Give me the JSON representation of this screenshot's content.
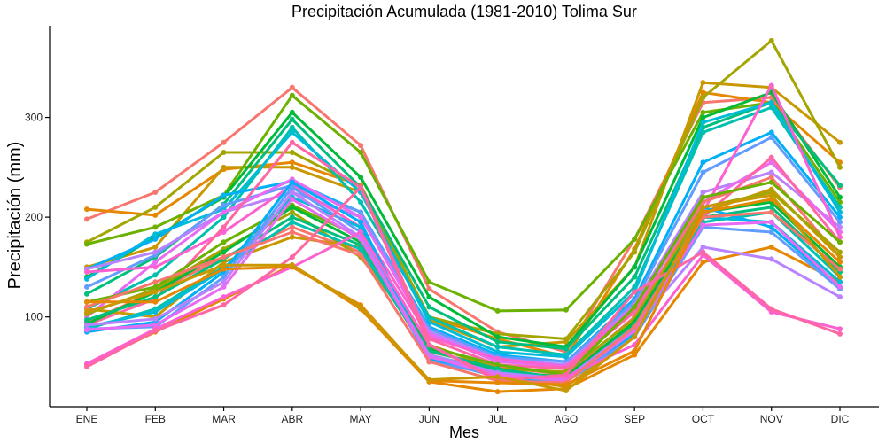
{
  "chart_data": {
    "type": "line",
    "title": "Precipitación Acumulada (1981-2010)  Tolima Sur",
    "xlabel": "Mes",
    "ylabel": "Precipitación  (mm)",
    "categories": [
      "ENE",
      "FEB",
      "MAR",
      "ABR",
      "MAY",
      "JUN",
      "JUL",
      "AGO",
      "SEP",
      "OCT",
      "NOV",
      "DIC"
    ],
    "yticks": [
      100,
      200,
      300
    ],
    "ylim": [
      10,
      392
    ],
    "grid": false,
    "legend": "none",
    "series": [
      {
        "color": "#F8766D",
        "values": [
          198,
          225,
          275,
          330,
          272,
          128,
          85,
          65,
          178,
          315,
          320,
          230
        ]
      },
      {
        "color": "#E58700",
        "values": [
          208,
          202,
          248,
          255,
          232,
          100,
          78,
          60,
          168,
          325,
          315,
          255
        ]
      },
      {
        "color": "#C99800",
        "values": [
          150,
          170,
          250,
          250,
          225,
          97,
          70,
          75,
          150,
          335,
          330,
          275
        ]
      },
      {
        "color": "#A3A500",
        "values": [
          175,
          210,
          265,
          265,
          230,
          100,
          83,
          78,
          165,
          320,
          377,
          250
        ]
      },
      {
        "color": "#6BB100",
        "values": [
          173,
          190,
          222,
          322,
          265,
          135,
          106,
          107,
          178,
          305,
          315,
          215
        ]
      },
      {
        "color": "#00BA38",
        "values": [
          140,
          180,
          220,
          305,
          240,
          120,
          80,
          70,
          150,
          300,
          325,
          220
        ]
      },
      {
        "color": "#00BF7D",
        "values": [
          123,
          160,
          213,
          298,
          230,
          110,
          75,
          68,
          140,
          290,
          315,
          232
        ]
      },
      {
        "color": "#00C0AF",
        "values": [
          108,
          142,
          200,
          290,
          215,
          100,
          70,
          62,
          130,
          285,
          310,
          210
        ]
      },
      {
        "color": "#00BCD8",
        "values": [
          138,
          183,
          208,
          285,
          225,
          95,
          65,
          60,
          125,
          295,
          315,
          205
        ]
      },
      {
        "color": "#00B0F6",
        "values": [
          148,
          178,
          222,
          236,
          205,
          90,
          62,
          55,
          118,
          255,
          285,
          200
        ]
      },
      {
        "color": "#619CFF",
        "values": [
          130,
          162,
          212,
          232,
          205,
          88,
          60,
          55,
          115,
          245,
          280,
          195
        ]
      },
      {
        "color": "#B983FF",
        "values": [
          148,
          165,
          205,
          225,
          200,
          85,
          58,
          52,
          112,
          225,
          245,
          190
        ]
      },
      {
        "color": "#E76BF3",
        "values": [
          100,
          155,
          205,
          238,
          200,
          83,
          55,
          50,
          110,
          215,
          255,
          185
        ]
      },
      {
        "color": "#FD61D1",
        "values": [
          145,
          150,
          185,
          232,
          190,
          80,
          58,
          50,
          108,
          205,
          332,
          180
        ]
      },
      {
        "color": "#FF67A4",
        "values": [
          92,
          118,
          190,
          275,
          230,
          78,
          52,
          48,
          105,
          200,
          260,
          175
        ]
      },
      {
        "color": "#F8766D",
        "values": [
          95,
          125,
          160,
          190,
          165,
          65,
          50,
          42,
          100,
          215,
          240,
          160
        ]
      },
      {
        "color": "#E58700",
        "values": [
          52,
          85,
          118,
          152,
          108,
          35,
          25,
          28,
          62,
          155,
          170,
          135
        ]
      },
      {
        "color": "#C99800",
        "values": [
          108,
          100,
          155,
          180,
          170,
          60,
          40,
          30,
          82,
          205,
          228,
          160
        ]
      },
      {
        "color": "#A3A500",
        "values": [
          103,
          128,
          168,
          205,
          160,
          72,
          48,
          45,
          98,
          210,
          225,
          165
        ]
      },
      {
        "color": "#6BB100",
        "values": [
          115,
          130,
          175,
          212,
          180,
          70,
          52,
          42,
          110,
          220,
          235,
          175
        ]
      },
      {
        "color": "#00BA38",
        "values": [
          93,
          125,
          165,
          210,
          175,
          68,
          45,
          40,
          95,
          205,
          215,
          150
        ]
      },
      {
        "color": "#00BF7D",
        "values": [
          97,
          120,
          158,
          200,
          172,
          66,
          48,
          38,
          92,
          200,
          210,
          145
        ]
      },
      {
        "color": "#00C0AF",
        "values": [
          88,
          108,
          150,
          195,
          168,
          62,
          45,
          38,
          88,
          195,
          205,
          140
        ]
      },
      {
        "color": "#00BCD8",
        "values": [
          90,
          105,
          148,
          220,
          190,
          60,
          42,
          36,
          85,
          200,
          195,
          135
        ]
      },
      {
        "color": "#00B0F6",
        "values": [
          85,
          95,
          145,
          235,
          195,
          58,
          40,
          35,
          82,
          210,
          190,
          130
        ]
      },
      {
        "color": "#619CFF",
        "values": [
          88,
          90,
          140,
          230,
          185,
          55,
          42,
          35,
          80,
          190,
          185,
          128
        ]
      },
      {
        "color": "#B983FF",
        "values": [
          92,
          98,
          135,
          225,
          180,
          62,
          44,
          38,
          90,
          170,
          158,
          120
        ]
      },
      {
        "color": "#E76BF3",
        "values": [
          87,
          92,
          130,
          218,
          178,
          60,
          42,
          36,
          86,
          192,
          195,
          130
        ]
      },
      {
        "color": "#FD61D1",
        "values": [
          53,
          88,
          120,
          150,
          185,
          72,
          38,
          40,
          72,
          162,
          105,
          88
        ]
      },
      {
        "color": "#FF67A4",
        "values": [
          50,
          86,
          112,
          160,
          230,
          72,
          36,
          42,
          125,
          165,
          108,
          83
        ]
      },
      {
        "color": "#F8766D",
        "values": [
          110,
          135,
          160,
          185,
          162,
          55,
          36,
          34,
          90,
          200,
          205,
          148
        ]
      },
      {
        "color": "#E58700",
        "values": [
          115,
          115,
          148,
          150,
          112,
          36,
          34,
          32,
          66,
          205,
          218,
          155
        ]
      },
      {
        "color": "#C99800",
        "values": [
          105,
          125,
          152,
          152,
          110,
          37,
          40,
          26,
          80,
          210,
          222,
          140
        ]
      }
    ]
  }
}
